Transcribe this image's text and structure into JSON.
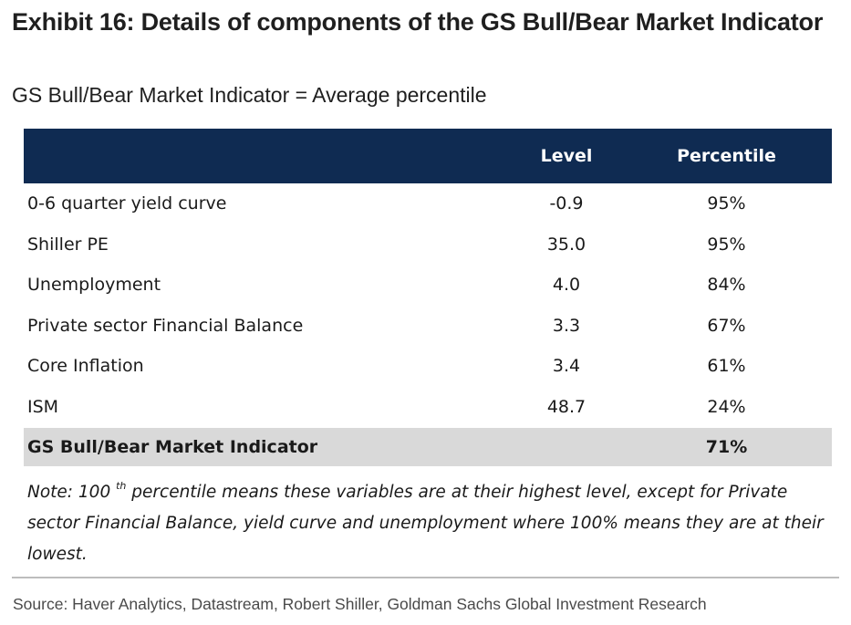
{
  "title": "Exhibit 16: Details of components of the GS Bull/Bear Market Indicator",
  "subtitle": "GS Bull/Bear Market Indicator = Average percentile",
  "table": {
    "headers": {
      "name": "",
      "level": "Level",
      "percentile": "Percentile"
    },
    "rows": [
      {
        "name": "0-6 quarter yield curve",
        "level": "-0.9",
        "percentile": "95%"
      },
      {
        "name": "Shiller PE",
        "level": "35.0",
        "percentile": "95%"
      },
      {
        "name": "Unemployment",
        "level": "4.0",
        "percentile": "84%"
      },
      {
        "name": "Private sector Financial Balance",
        "level": "3.3",
        "percentile": "67%"
      },
      {
        "name": "Core Inflation",
        "level": "3.4",
        "percentile": "61%"
      },
      {
        "name": "ISM",
        "level": "48.7",
        "percentile": "24%"
      }
    ],
    "total": {
      "name": "GS Bull/Bear Market Indicator",
      "level": "",
      "percentile": "71%"
    }
  },
  "note": {
    "prefix": "Note: 100",
    "superscript": "th",
    "text": " percentile means these variables are at their highest level, except for Private sector Financial Balance, yield curve and unemployment where 100% means they are at their lowest."
  },
  "source": "Source: Haver Analytics, Datastream, Robert Shiller, Goldman Sachs Global Investment Research",
  "colors": {
    "header_bg": "#0f2b52",
    "total_bg": "#d9d9d9"
  }
}
